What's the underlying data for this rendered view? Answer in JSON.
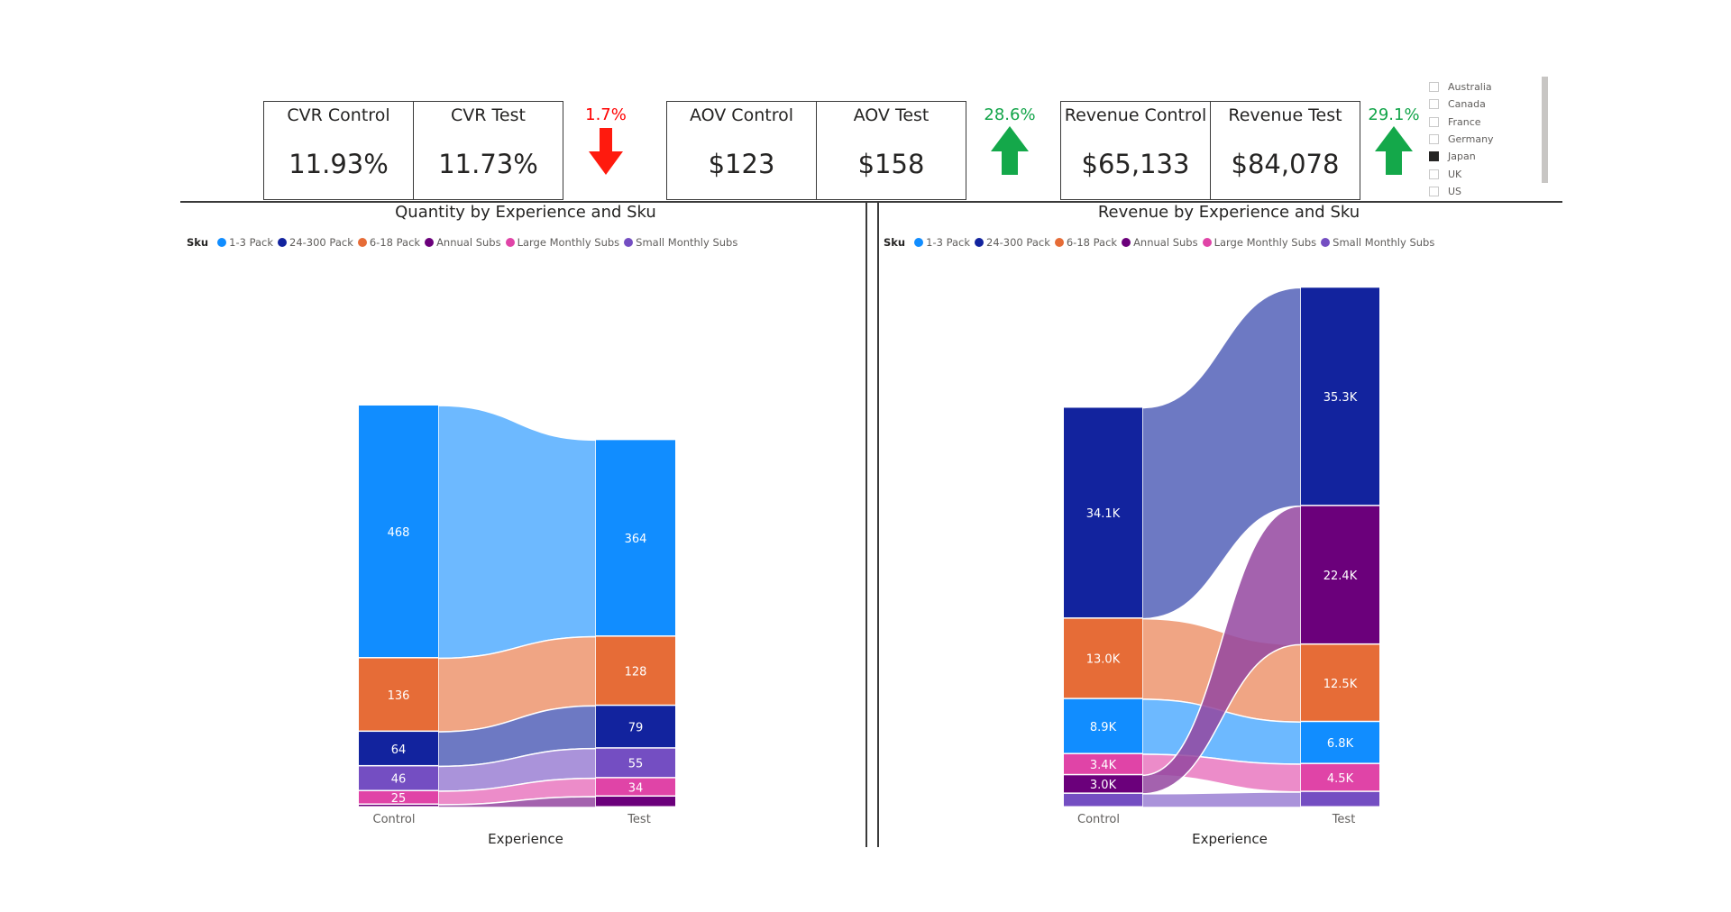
{
  "kpis": {
    "cvr_control": {
      "label": "CVR Control",
      "value": "11.93%"
    },
    "cvr_test": {
      "label": "CVR Test",
      "value": "11.73%"
    },
    "cvr_delta": {
      "pct": "1.7%",
      "direction": "down",
      "color": "#ff0000"
    },
    "aov_control": {
      "label": "AOV Control",
      "value": "$123"
    },
    "aov_test": {
      "label": "AOV Test",
      "value": "$158"
    },
    "aov_delta": {
      "pct": "28.6%",
      "direction": "up",
      "color": "#13a54a"
    },
    "rev_control": {
      "label": "Revenue Control",
      "value": "$65,133"
    },
    "rev_test": {
      "label": "Revenue Test",
      "value": "$84,078"
    },
    "rev_delta": {
      "pct": "29.1%",
      "direction": "up",
      "color": "#13a54a"
    }
  },
  "slicer": {
    "items": [
      {
        "label": "Australia",
        "checked": false
      },
      {
        "label": "Canada",
        "checked": false
      },
      {
        "label": "France",
        "checked": false
      },
      {
        "label": "Germany",
        "checked": false
      },
      {
        "label": "Japan",
        "checked": true
      },
      {
        "label": "UK",
        "checked": false
      },
      {
        "label": "US",
        "checked": false
      }
    ]
  },
  "legend": {
    "title": "Sku",
    "items": [
      {
        "label": "1-3 Pack",
        "color": "#118dff"
      },
      {
        "label": "24-300 Pack",
        "color": "#12239e"
      },
      {
        "label": "6-18 Pack",
        "color": "#e66c37"
      },
      {
        "label": "Annual Subs",
        "color": "#6b007b"
      },
      {
        "label": "Large Monthly Subs",
        "color": "#e044a7"
      },
      {
        "label": "Small Monthly Subs",
        "color": "#744ec2"
      }
    ]
  },
  "chart_data": [
    {
      "type": "sankey",
      "title": "Quantity by Experience and Sku",
      "xlabel": "Experience",
      "categories": [
        "Control",
        "Test"
      ],
      "stack_order": [
        "1-3 Pack",
        "6-18 Pack",
        "24-300 Pack",
        "Small Monthly Subs",
        "Large Monthly Subs",
        "Annual Subs"
      ],
      "series": [
        {
          "name": "1-3 Pack",
          "values": [
            468,
            364
          ],
          "labels": [
            "468",
            "364"
          ]
        },
        {
          "name": "6-18 Pack",
          "values": [
            136,
            128
          ],
          "labels": [
            "136",
            "128"
          ]
        },
        {
          "name": "24-300 Pack",
          "values": [
            64,
            79
          ],
          "labels": [
            "64",
            "79"
          ]
        },
        {
          "name": "Small Monthly Subs",
          "values": [
            46,
            55
          ],
          "labels": [
            "46",
            "55"
          ]
        },
        {
          "name": "Large Monthly Subs",
          "values": [
            25,
            34
          ],
          "labels": [
            "25",
            "34"
          ]
        },
        {
          "name": "Annual Subs",
          "values": [
            5,
            20
          ],
          "labels": [
            "",
            ""
          ]
        }
      ]
    },
    {
      "type": "sankey",
      "title": "Revenue by Experience and Sku",
      "xlabel": "Experience",
      "categories": [
        "Control",
        "Test"
      ],
      "stack_order_control": [
        "24-300 Pack",
        "6-18 Pack",
        "1-3 Pack",
        "Large Monthly Subs",
        "Annual Subs",
        "Small Monthly Subs"
      ],
      "stack_order_test": [
        "24-300 Pack",
        "Annual Subs",
        "6-18 Pack",
        "1-3 Pack",
        "Large Monthly Subs",
        "Small Monthly Subs"
      ],
      "series": [
        {
          "name": "24-300 Pack",
          "values": [
            34100,
            35300
          ],
          "labels": [
            "34.1K",
            "35.3K"
          ]
        },
        {
          "name": "6-18 Pack",
          "values": [
            13000,
            12500
          ],
          "labels": [
            "13.0K",
            "12.5K"
          ]
        },
        {
          "name": "1-3 Pack",
          "values": [
            8900,
            6800
          ],
          "labels": [
            "8.9K",
            "6.8K"
          ]
        },
        {
          "name": "Large Monthly Subs",
          "values": [
            3400,
            4500
          ],
          "labels": [
            "3.4K",
            "4.5K"
          ]
        },
        {
          "name": "Annual Subs",
          "values": [
            3000,
            22400
          ],
          "labels": [
            "3.0K",
            "22.4K"
          ]
        },
        {
          "name": "Small Monthly Subs",
          "values": [
            2200,
            2500
          ],
          "labels": [
            "",
            ""
          ]
        }
      ]
    }
  ]
}
